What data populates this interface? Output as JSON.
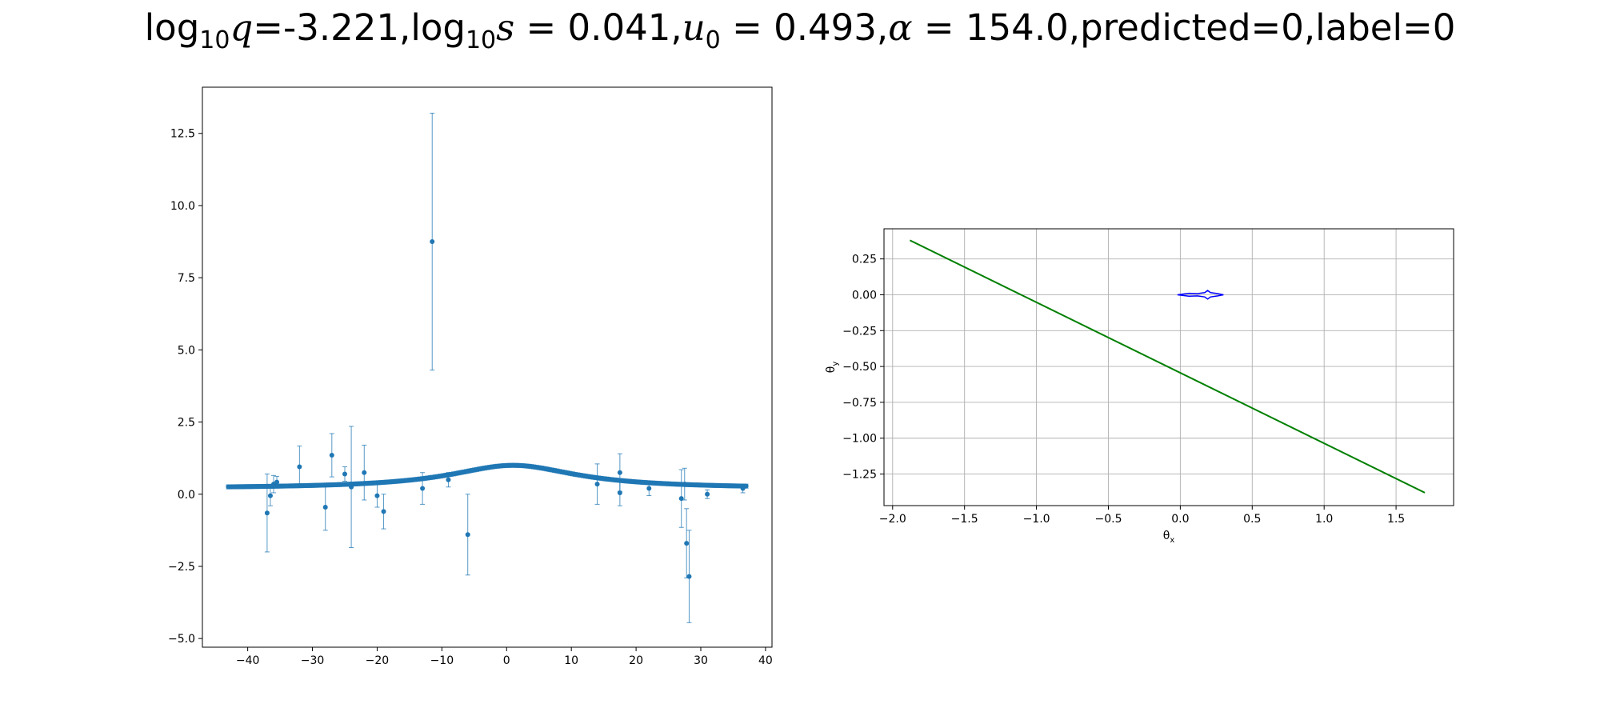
{
  "title": {
    "log": "log",
    "base": "10",
    "q_sym": "q",
    "q_val": "=-3.221,",
    "s_sym": "s",
    "s_val": " = 0.041,",
    "u_sym": "u",
    "u_sub": "0",
    "u_val": " = 0.493,",
    "alpha_sym": "α",
    "alpha_val": " = 154.0,",
    "tail": "predicted=0,label=0"
  },
  "chart_data": [
    {
      "type": "scatter",
      "title": "",
      "xlabel": "",
      "ylabel": "",
      "xlim": [
        -47,
        41
      ],
      "ylim": [
        -5.3,
        14.1
      ],
      "xticks": [
        -40,
        -30,
        -20,
        -10,
        0,
        10,
        20,
        30,
        40
      ],
      "xtick_labels": [
        "−40",
        "−30",
        "−20",
        "−10",
        "0",
        "10",
        "20",
        "30",
        "40"
      ],
      "yticks": [
        -5.0,
        -2.5,
        0.0,
        2.5,
        5.0,
        7.5,
        10.0,
        12.5
      ],
      "ytick_labels": [
        "−5.0",
        "−2.5",
        "0.0",
        "2.5",
        "5.0",
        "7.5",
        "10.0",
        "12.5"
      ],
      "grid": false,
      "color": "#1f77b4",
      "series": [
        {
          "points": [
            {
              "x": -37.0,
              "y": -0.65,
              "err": 1.35
            },
            {
              "x": -36.5,
              "y": -0.05,
              "err": 0.35
            },
            {
              "x": -36.0,
              "y": 0.35,
              "err": 0.3
            },
            {
              "x": -35.5,
              "y": 0.42,
              "err": 0.2
            },
            {
              "x": -32.0,
              "y": 0.95,
              "err": 0.72
            },
            {
              "x": -28.0,
              "y": -0.45,
              "err": 0.8
            },
            {
              "x": -27.0,
              "y": 1.35,
              "err": 0.75
            },
            {
              "x": -25.0,
              "y": 0.7,
              "err": 0.25
            },
            {
              "x": -24.0,
              "y": 0.25,
              "err": 2.1
            },
            {
              "x": -22.0,
              "y": 0.75,
              "err": 0.95
            },
            {
              "x": -20.0,
              "y": -0.05,
              "err": 0.4
            },
            {
              "x": -19.0,
              "y": -0.6,
              "err": 0.6
            },
            {
              "x": -13.0,
              "y": 0.2,
              "err": 0.55
            },
            {
              "x": -11.5,
              "y": 8.75,
              "err": 4.45
            },
            {
              "x": -9.0,
              "y": 0.5,
              "err": 0.25
            },
            {
              "x": -6.0,
              "y": -1.4,
              "err": 1.4
            },
            {
              "x": 14.0,
              "y": 0.35,
              "err": 0.7
            },
            {
              "x": 17.5,
              "y": 0.75,
              "err": 0.65
            },
            {
              "x": 17.5,
              "y": 0.05,
              "err": 0.45
            },
            {
              "x": 22.0,
              "y": 0.2,
              "err": 0.25
            },
            {
              "x": 27.0,
              "y": -0.15,
              "err": 1.0
            },
            {
              "x": 27.5,
              "y": 0.35,
              "err": 0.55
            },
            {
              "x": 27.8,
              "y": -1.7,
              "err": 1.2
            },
            {
              "x": 28.2,
              "y": -2.85,
              "err": 1.6
            },
            {
              "x": 31.0,
              "y": 0.0,
              "err": 0.15
            },
            {
              "x": 36.5,
              "y": 0.2,
              "err": 0.15
            }
          ],
          "curve": {
            "x_start": -43,
            "x_end": 37,
            "step": 0.4,
            "baseline": 0.2,
            "peak": 0.8,
            "peak_x": 1.0,
            "width": 12.0,
            "err": 0.07
          }
        }
      ]
    },
    {
      "type": "line",
      "title": "",
      "xlabel": "θ",
      "xlabel_sub": "x",
      "ylabel": "θ",
      "ylabel_sub": "y",
      "xlim": [
        -2.06,
        1.9
      ],
      "ylim": [
        -1.47,
        0.46
      ],
      "xticks": [
        -2.0,
        -1.5,
        -1.0,
        -0.5,
        0.0,
        0.5,
        1.0,
        1.5
      ],
      "xtick_labels": [
        "−2.0",
        "−1.5",
        "−1.0",
        "−0.5",
        "0.0",
        "0.5",
        "1.0",
        "1.5"
      ],
      "yticks": [
        0.25,
        0.0,
        -0.25,
        -0.5,
        -0.75,
        -1.0,
        -1.25
      ],
      "ytick_labels": [
        "0.25",
        "0.00",
        "−0.25",
        "−0.50",
        "−0.75",
        "−1.00",
        "−1.25"
      ],
      "grid": true,
      "series": [
        {
          "color": "#008000",
          "points": [
            [
              -1.88,
              0.38
            ],
            [
              1.7,
              -1.38
            ]
          ]
        },
        {
          "color": "#0000ff",
          "points": [
            [
              -0.02,
              0.0
            ],
            [
              0.06,
              0.01
            ],
            [
              0.12,
              0.008
            ],
            [
              0.17,
              0.015
            ],
            [
              0.19,
              0.03
            ],
            [
              0.21,
              0.015
            ],
            [
              0.26,
              0.008
            ],
            [
              0.3,
              0.0
            ],
            [
              0.26,
              -0.008
            ],
            [
              0.21,
              -0.015
            ],
            [
              0.19,
              -0.03
            ],
            [
              0.17,
              -0.015
            ],
            [
              0.12,
              -0.008
            ],
            [
              0.06,
              -0.01
            ],
            [
              -0.02,
              0.0
            ]
          ]
        }
      ]
    }
  ]
}
